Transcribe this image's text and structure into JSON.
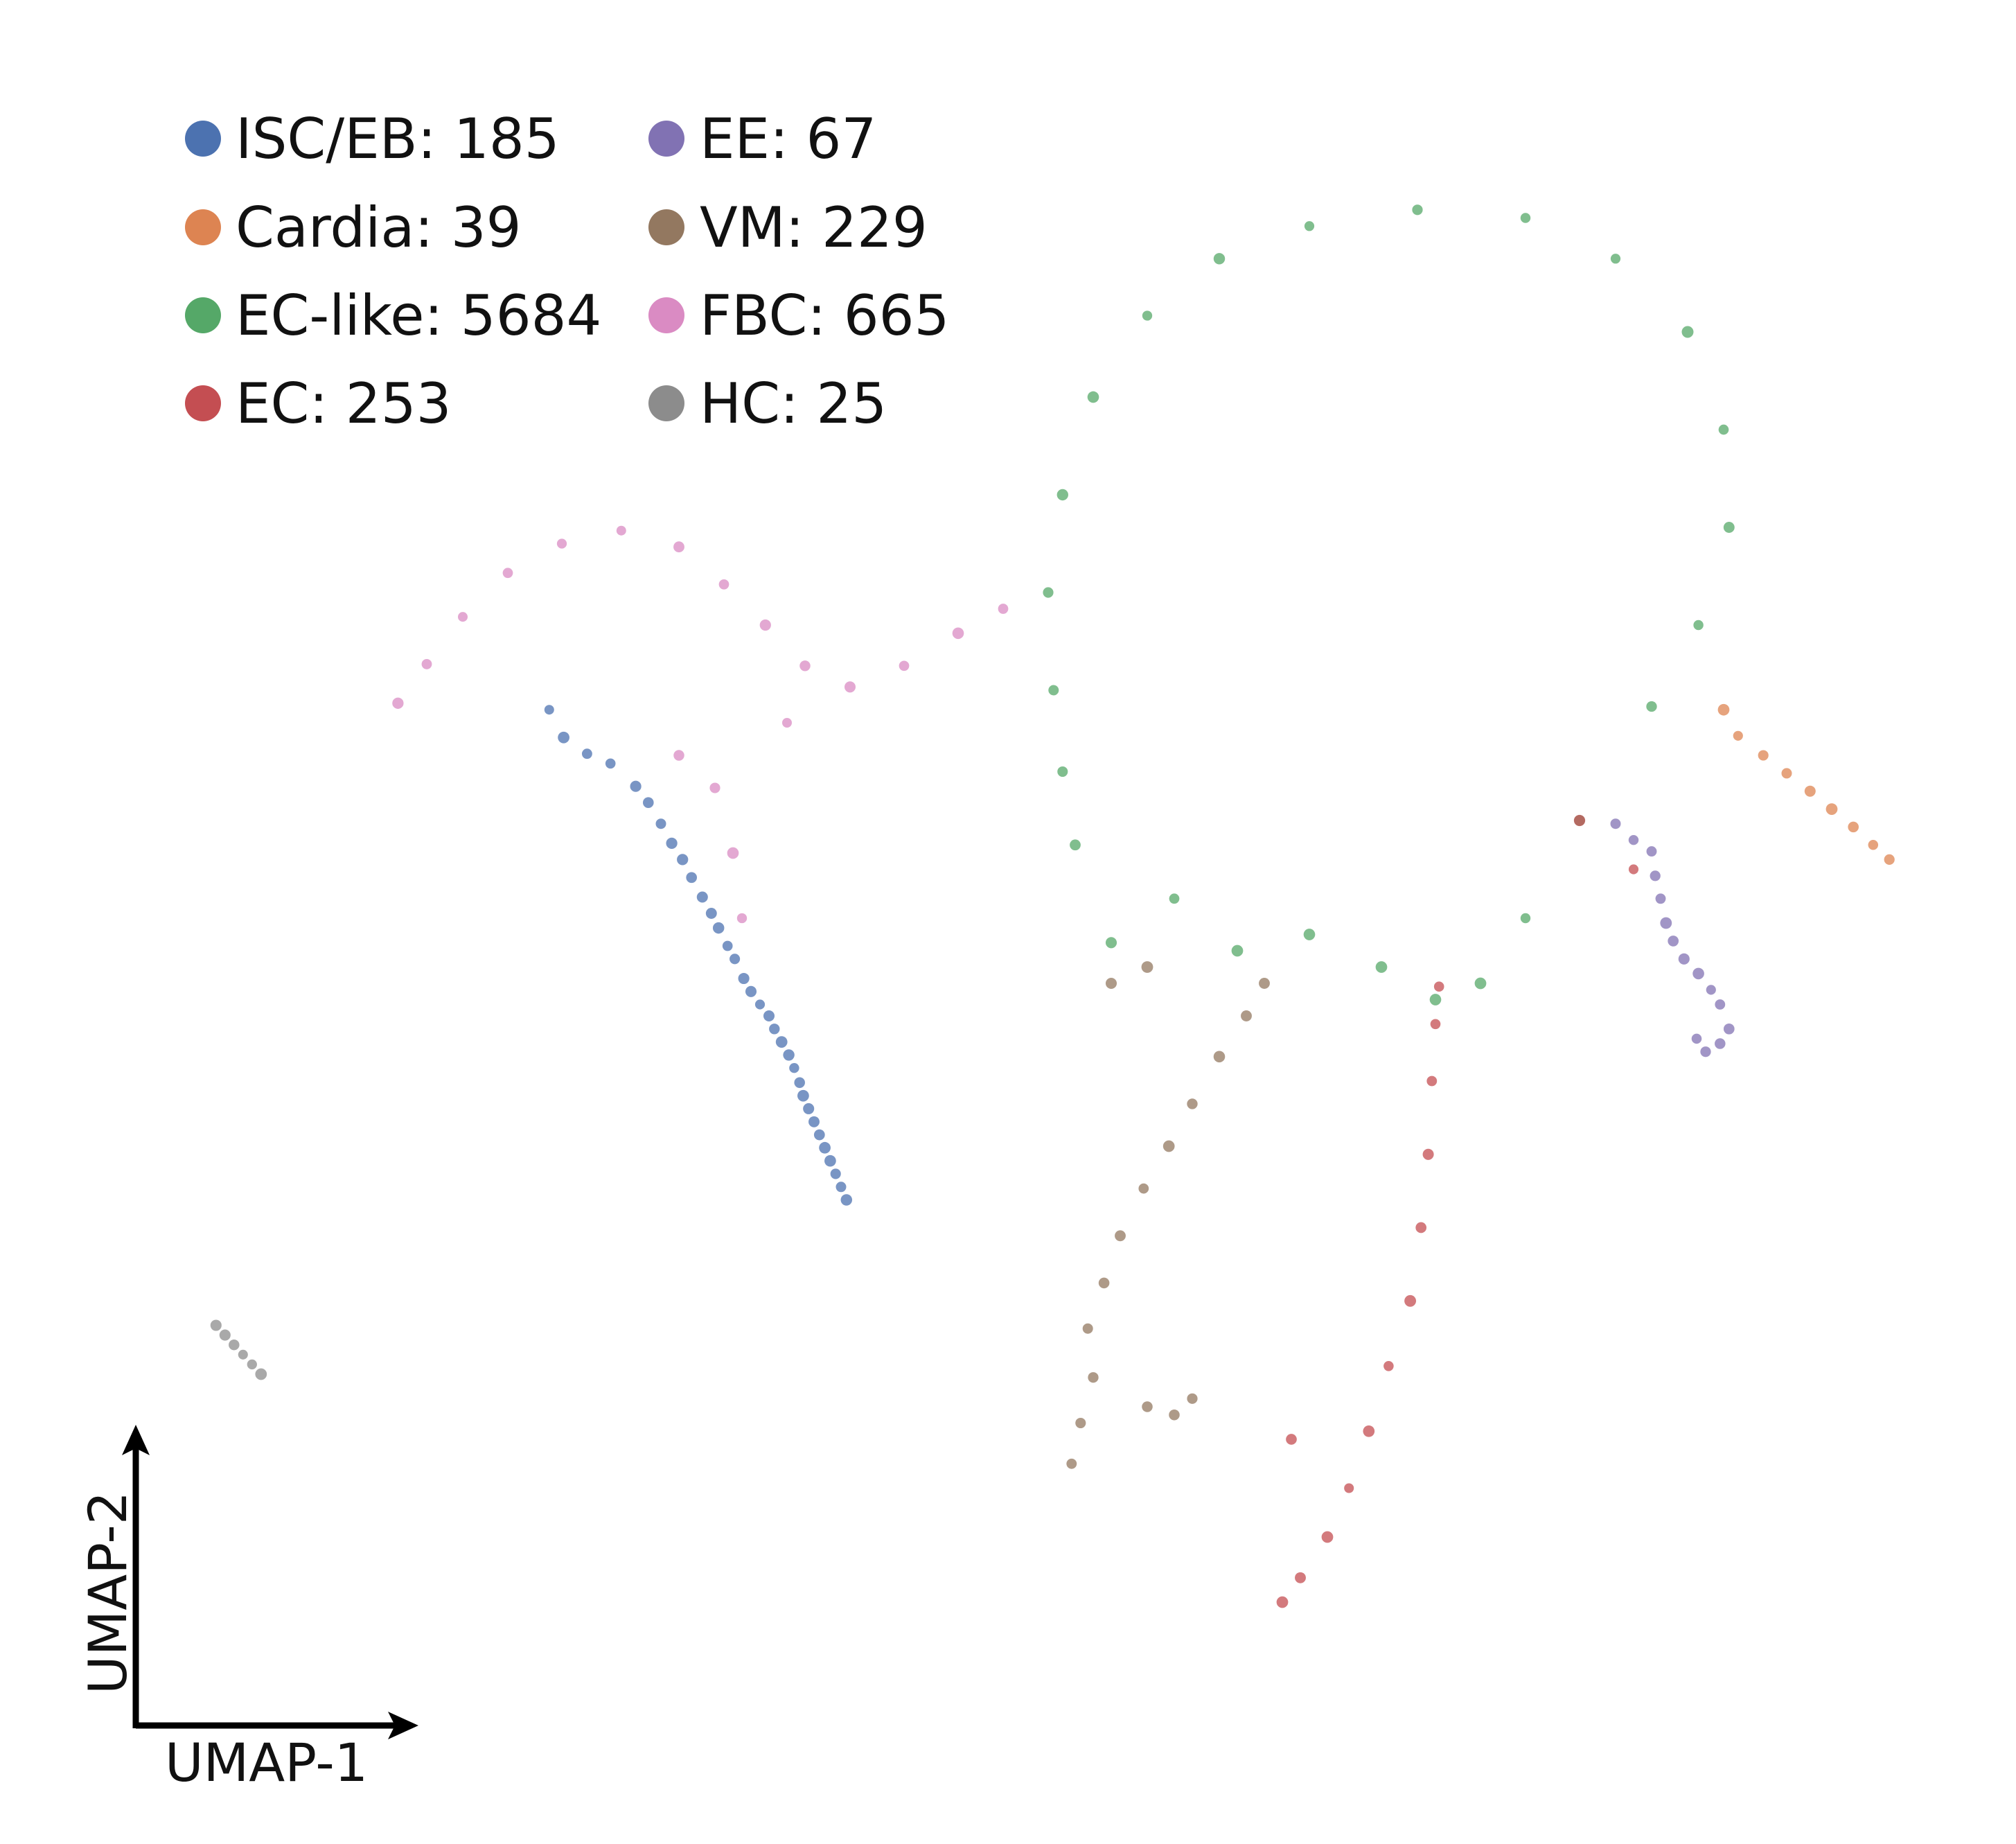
{
  "chart_data": {
    "type": "scatter",
    "title": "",
    "xlabel": "UMAP-1",
    "ylabel": "UMAP-2",
    "grid": false,
    "legend": "top-left, 2 columns",
    "series": [
      {
        "name": "ISC/EB: 185",
        "color": "#4c72b0",
        "points": [
          [
            0.228,
            0.628
          ],
          [
            0.236,
            0.611
          ],
          [
            0.249,
            0.601
          ],
          [
            0.262,
            0.595
          ],
          [
            0.276,
            0.581
          ],
          [
            0.283,
            0.571
          ],
          [
            0.29,
            0.558
          ],
          [
            0.296,
            0.546
          ],
          [
            0.302,
            0.536
          ],
          [
            0.307,
            0.525
          ],
          [
            0.313,
            0.513
          ],
          [
            0.318,
            0.503
          ],
          [
            0.322,
            0.494
          ],
          [
            0.327,
            0.483
          ],
          [
            0.331,
            0.475
          ],
          [
            0.336,
            0.463
          ],
          [
            0.34,
            0.455
          ],
          [
            0.345,
            0.447
          ],
          [
            0.35,
            0.44
          ],
          [
            0.353,
            0.432
          ],
          [
            0.357,
            0.424
          ],
          [
            0.361,
            0.416
          ],
          [
            0.364,
            0.408
          ],
          [
            0.367,
            0.399
          ],
          [
            0.369,
            0.391
          ],
          [
            0.372,
            0.383
          ],
          [
            0.375,
            0.375
          ],
          [
            0.378,
            0.367
          ],
          [
            0.381,
            0.359
          ],
          [
            0.384,
            0.351
          ],
          [
            0.387,
            0.343
          ],
          [
            0.39,
            0.335
          ],
          [
            0.393,
            0.327
          ]
        ]
      },
      {
        "name": "EE: 67",
        "color": "#8172b3",
        "points": [
          [
            0.82,
            0.558
          ],
          [
            0.83,
            0.548
          ],
          [
            0.84,
            0.541
          ],
          [
            0.842,
            0.526
          ],
          [
            0.845,
            0.512
          ],
          [
            0.848,
            0.497
          ],
          [
            0.852,
            0.486
          ],
          [
            0.858,
            0.475
          ],
          [
            0.866,
            0.466
          ],
          [
            0.873,
            0.456
          ],
          [
            0.878,
            0.447
          ],
          [
            0.883,
            0.432
          ],
          [
            0.878,
            0.423
          ],
          [
            0.87,
            0.418
          ],
          [
            0.865,
            0.426
          ]
        ]
      },
      {
        "name": "Cardia: 39",
        "color": "#dd8452",
        "points": [
          [
            0.88,
            0.628
          ],
          [
            0.888,
            0.612
          ],
          [
            0.902,
            0.6
          ],
          [
            0.915,
            0.589
          ],
          [
            0.928,
            0.578
          ],
          [
            0.94,
            0.567
          ],
          [
            0.952,
            0.556
          ],
          [
            0.963,
            0.545
          ],
          [
            0.972,
            0.536
          ]
        ]
      },
      {
        "name": "VM: 229",
        "color": "#937860",
        "points": [
          [
            0.518,
            0.165
          ],
          [
            0.523,
            0.19
          ],
          [
            0.53,
            0.218
          ],
          [
            0.527,
            0.248
          ],
          [
            0.536,
            0.276
          ],
          [
            0.545,
            0.305
          ],
          [
            0.558,
            0.334
          ],
          [
            0.572,
            0.36
          ],
          [
            0.585,
            0.386
          ],
          [
            0.6,
            0.415
          ],
          [
            0.615,
            0.44
          ],
          [
            0.625,
            0.46
          ],
          [
            0.575,
            0.195
          ],
          [
            0.56,
            0.2
          ],
          [
            0.54,
            0.46
          ],
          [
            0.56,
            0.47
          ],
          [
            0.585,
            0.205
          ]
        ]
      },
      {
        "name": "EC-like: 5684",
        "color": "#55a868",
        "points": [
          [
            0.54,
            0.485
          ],
          [
            0.575,
            0.512
          ],
          [
            0.52,
            0.545
          ],
          [
            0.513,
            0.59
          ],
          [
            0.508,
            0.64
          ],
          [
            0.505,
            0.7
          ],
          [
            0.513,
            0.76
          ],
          [
            0.53,
            0.82
          ],
          [
            0.56,
            0.87
          ],
          [
            0.6,
            0.905
          ],
          [
            0.65,
            0.925
          ],
          [
            0.71,
            0.935
          ],
          [
            0.77,
            0.93
          ],
          [
            0.82,
            0.905
          ],
          [
            0.86,
            0.86
          ],
          [
            0.88,
            0.8
          ],
          [
            0.883,
            0.74
          ],
          [
            0.866,
            0.68
          ],
          [
            0.84,
            0.63
          ],
          [
            0.8,
            0.56
          ],
          [
            0.77,
            0.5
          ],
          [
            0.745,
            0.46
          ],
          [
            0.72,
            0.45
          ],
          [
            0.69,
            0.47
          ],
          [
            0.65,
            0.49
          ],
          [
            0.61,
            0.48
          ]
        ]
      },
      {
        "name": "VM: 229",
        "color": "#937860",
        "points": []
      },
      {
        "name": "FBC: 665",
        "color": "#da8bc3",
        "points": [
          [
            0.144,
            0.632
          ],
          [
            0.16,
            0.656
          ],
          [
            0.18,
            0.685
          ],
          [
            0.205,
            0.712
          ],
          [
            0.235,
            0.73
          ],
          [
            0.268,
            0.738
          ],
          [
            0.3,
            0.728
          ],
          [
            0.325,
            0.705
          ],
          [
            0.348,
            0.68
          ],
          [
            0.37,
            0.655
          ],
          [
            0.395,
            0.642
          ],
          [
            0.425,
            0.655
          ],
          [
            0.455,
            0.675
          ],
          [
            0.48,
            0.69
          ],
          [
            0.32,
            0.58
          ],
          [
            0.33,
            0.54
          ],
          [
            0.335,
            0.5
          ],
          [
            0.3,
            0.6
          ],
          [
            0.36,
            0.62
          ]
        ]
      },
      {
        "name": "EC: 253",
        "color": "#c44e52",
        "points": [
          [
            0.635,
            0.08
          ],
          [
            0.645,
            0.095
          ],
          [
            0.66,
            0.12
          ],
          [
            0.672,
            0.15
          ],
          [
            0.683,
            0.185
          ],
          [
            0.694,
            0.225
          ],
          [
            0.706,
            0.265
          ],
          [
            0.712,
            0.31
          ],
          [
            0.716,
            0.355
          ],
          [
            0.718,
            0.4
          ],
          [
            0.72,
            0.435
          ],
          [
            0.722,
            0.458
          ],
          [
            0.64,
            0.18
          ],
          [
            0.83,
            0.53
          ],
          [
            0.8,
            0.56
          ]
        ]
      },
      {
        "name": "HC: 25",
        "color": "#8c8c8c",
        "points": [
          [
            0.043,
            0.25
          ],
          [
            0.048,
            0.244
          ],
          [
            0.053,
            0.238
          ],
          [
            0.058,
            0.232
          ],
          [
            0.063,
            0.226
          ],
          [
            0.068,
            0.22
          ]
        ]
      }
    ],
    "legend_entries": [
      {
        "label": "ISC/EB: 185",
        "color": "#4c72b0"
      },
      {
        "label": "Cardia: 39",
        "color": "#dd8452"
      },
      {
        "label": "EC-like: 5684",
        "color": "#55a868"
      },
      {
        "label": "EC: 253",
        "color": "#c44e52"
      },
      {
        "label": "EE: 67",
        "color": "#8172b3"
      },
      {
        "label": "VM: 229",
        "color": "#937860"
      },
      {
        "label": "FBC: 665",
        "color": "#da8bc3"
      },
      {
        "label": "HC: 25",
        "color": "#8c8c8c"
      }
    ]
  }
}
